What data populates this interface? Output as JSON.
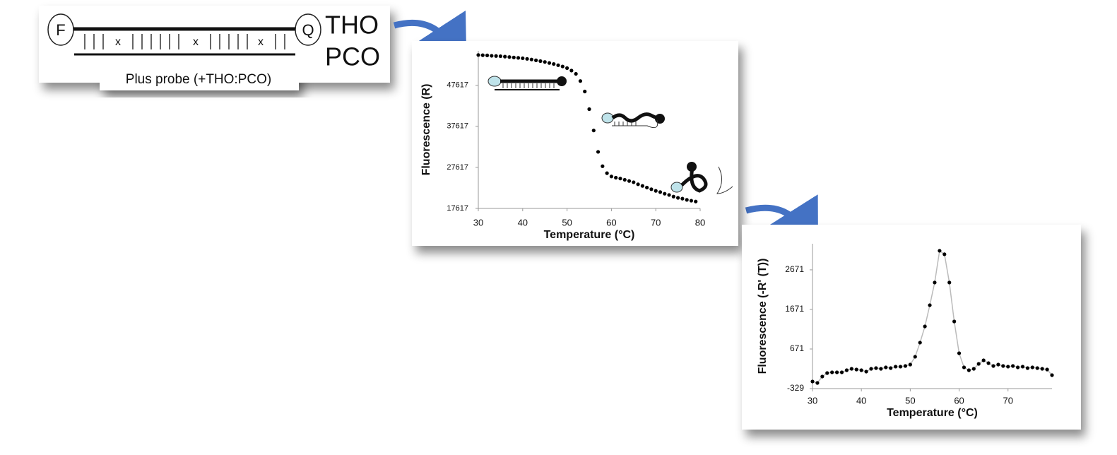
{
  "diagram": {
    "left_label": "F",
    "right_label": "Q",
    "strand_labels": [
      "THO",
      "PCO"
    ],
    "mismatch_marks": [
      "x",
      "x",
      "x"
    ],
    "caption": "Plus probe (+THO:PCO)"
  },
  "chart_data": [
    {
      "type": "line",
      "xlabel": "Temperature (°C)",
      "ylabel": "Fluorescence (R)",
      "x": [
        30,
        31,
        32,
        33,
        34,
        35,
        36,
        37,
        38,
        39,
        40,
        41,
        42,
        43,
        44,
        45,
        46,
        47,
        48,
        49,
        50,
        51,
        52,
        53,
        54,
        55,
        56,
        57,
        58,
        59,
        60,
        61,
        62,
        63,
        64,
        65,
        66,
        67,
        68,
        69,
        70,
        71,
        72,
        73,
        74,
        75,
        76,
        77,
        78,
        79
      ],
      "values": [
        55000,
        54950,
        54900,
        54800,
        54750,
        54700,
        54600,
        54500,
        54400,
        54300,
        54200,
        54050,
        53900,
        53700,
        53500,
        53300,
        53050,
        52800,
        52500,
        52200,
        51800,
        51200,
        50400,
        48650,
        46100,
        41800,
        36600,
        31400,
        27900,
        26200,
        25400,
        25100,
        24900,
        24600,
        24300,
        24000,
        23500,
        23100,
        22700,
        22300,
        21900,
        21600,
        21200,
        20900,
        20500,
        20200,
        20000,
        19700,
        19500,
        19300
      ],
      "color": "#000000",
      "xlim": [
        30,
        80
      ],
      "xticks": [
        30,
        40,
        50,
        60,
        70,
        80
      ],
      "ylim": [
        17617,
        56000
      ],
      "yticks": [
        17617,
        27617,
        37617,
        47617
      ]
    },
    {
      "type": "line",
      "xlabel": "Temperature (°C)",
      "ylabel": "Fluorescence (-R' (T))",
      "x": [
        30,
        31,
        32,
        33,
        34,
        35,
        36,
        37,
        38,
        39,
        40,
        41,
        42,
        43,
        44,
        45,
        46,
        47,
        48,
        49,
        50,
        51,
        52,
        53,
        54,
        55,
        56,
        57,
        58,
        59,
        60,
        61,
        62,
        63,
        64,
        65,
        66,
        67,
        68,
        69,
        70,
        71,
        72,
        73,
        74,
        75,
        76,
        77,
        78,
        79
      ],
      "values": [
        -150,
        -186,
        -25,
        64,
        82,
        82,
        82,
        135,
        171,
        153,
        135,
        100,
        171,
        189,
        171,
        207,
        189,
        225,
        225,
        242,
        278,
        475,
        832,
        1242,
        1778,
        2350,
        3153,
        3064,
        2350,
        1367,
        564,
        207,
        135,
        171,
        296,
        385,
        314,
        242,
        278,
        242,
        225,
        242,
        207,
        225,
        189,
        207,
        189,
        171,
        153,
        10
      ],
      "color": "#000000",
      "line_color": "#bbbbbb",
      "xlim": [
        30,
        79
      ],
      "xticks": [
        30,
        40,
        50,
        60,
        70
      ],
      "ylim": [
        -329,
        3330
      ],
      "yticks": [
        -329,
        671,
        1671,
        2671
      ]
    }
  ]
}
